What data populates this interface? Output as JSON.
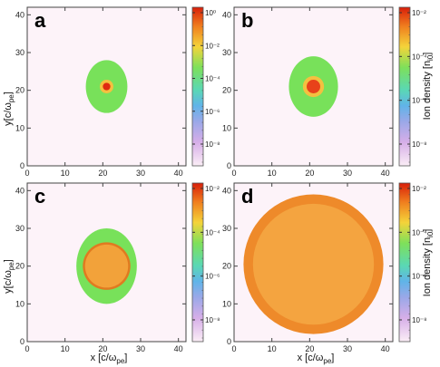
{
  "colors": {
    "outer_green": "#78e15a",
    "mid_orange": "#f0a63e",
    "deep_orange": "#ee8a2a",
    "red_core": "#e02a10",
    "frame": "#444444"
  },
  "axis_titles": {
    "x_prefix": "x [c/ω",
    "x_sub": "pe",
    "x_suffix": "]",
    "y_prefix": "y[c/ω",
    "y_sub": "pe",
    "y_suffix": "]",
    "colorbar_prefix": "Ion density [n",
    "colorbar_sub": "i0",
    "colorbar_suffix": "]"
  },
  "chart_data": [
    {
      "type": "heatmap",
      "panel": "a",
      "xlim": [
        0,
        42
      ],
      "ylim": [
        0,
        42
      ],
      "xticks": [
        "0",
        "10",
        "20",
        "30",
        "40"
      ],
      "yticks": [
        "0",
        "10",
        "20",
        "30",
        "40"
      ],
      "center": [
        21,
        21
      ],
      "regions": [
        {
          "level": "outer",
          "rx": 5.5,
          "ry": 7.0,
          "color": "#78e15a"
        },
        {
          "level": "halo",
          "rx": 1.8,
          "ry": 1.8,
          "color": "#f4c040"
        },
        {
          "level": "core",
          "rx": 1.0,
          "ry": 1.0,
          "color": "#e02a10"
        }
      ],
      "colorbar": {
        "scale": "log",
        "labels": [
          "10⁰",
          "10⁻²",
          "10⁻⁴",
          "10⁻⁶",
          "10⁻⁸"
        ],
        "show_title": false
      }
    },
    {
      "type": "heatmap",
      "panel": "b",
      "xlim": [
        0,
        42
      ],
      "ylim": [
        0,
        42
      ],
      "xticks": [
        "0",
        "10",
        "20",
        "30",
        "40"
      ],
      "yticks": [
        "0",
        "10",
        "20",
        "30",
        "40"
      ],
      "center": [
        21,
        21
      ],
      "regions": [
        {
          "level": "outer",
          "rx": 6.5,
          "ry": 8.0,
          "color": "#78e15a"
        },
        {
          "level": "halo",
          "rx": 2.8,
          "ry": 2.8,
          "color": "#f4c040"
        },
        {
          "level": "core",
          "rx": 1.8,
          "ry": 1.8,
          "color": "#e8421a"
        }
      ],
      "colorbar": {
        "scale": "log",
        "labels": [
          "10⁻²",
          "10⁻⁴",
          "10⁻⁶",
          "10⁻⁸"
        ],
        "show_title": true
      }
    },
    {
      "type": "heatmap",
      "panel": "c",
      "xlim": [
        0,
        42
      ],
      "ylim": [
        0,
        42
      ],
      "xticks": [
        "0",
        "10",
        "20",
        "30",
        "40"
      ],
      "yticks": [
        "0",
        "10",
        "20",
        "30",
        "40"
      ],
      "center": [
        21,
        20
      ],
      "regions": [
        {
          "level": "outer",
          "rx": 8.0,
          "ry": 10.0,
          "color": "#78e15a"
        },
        {
          "level": "ring",
          "rx": 6.3,
          "ry": 6.3,
          "color": "#e07a20"
        },
        {
          "level": "inner",
          "rx": 5.7,
          "ry": 5.7,
          "color": "#f2a23a"
        }
      ],
      "colorbar": {
        "scale": "log",
        "labels": [
          "10⁻²",
          "10⁻⁴",
          "10⁻⁶",
          "10⁻⁸"
        ],
        "show_title": false
      }
    },
    {
      "type": "heatmap",
      "panel": "d",
      "xlim": [
        0,
        42
      ],
      "ylim": [
        0,
        42
      ],
      "xticks": [
        "0",
        "10",
        "20",
        "30",
        "40"
      ],
      "yticks": [
        "0",
        "10",
        "20",
        "30",
        "40"
      ],
      "center": [
        21,
        20.5
      ],
      "regions": [
        {
          "level": "outer",
          "rx": 18.5,
          "ry": 18.5,
          "color": "#ee8a2a"
        },
        {
          "level": "inner",
          "rx": 16.0,
          "ry": 16.0,
          "color": "#f4a440"
        }
      ],
      "colorbar": {
        "scale": "log",
        "labels": [
          "10⁻²",
          "10⁻⁴",
          "10⁻⁶",
          "10⁻⁸"
        ],
        "show_title": true
      }
    }
  ]
}
